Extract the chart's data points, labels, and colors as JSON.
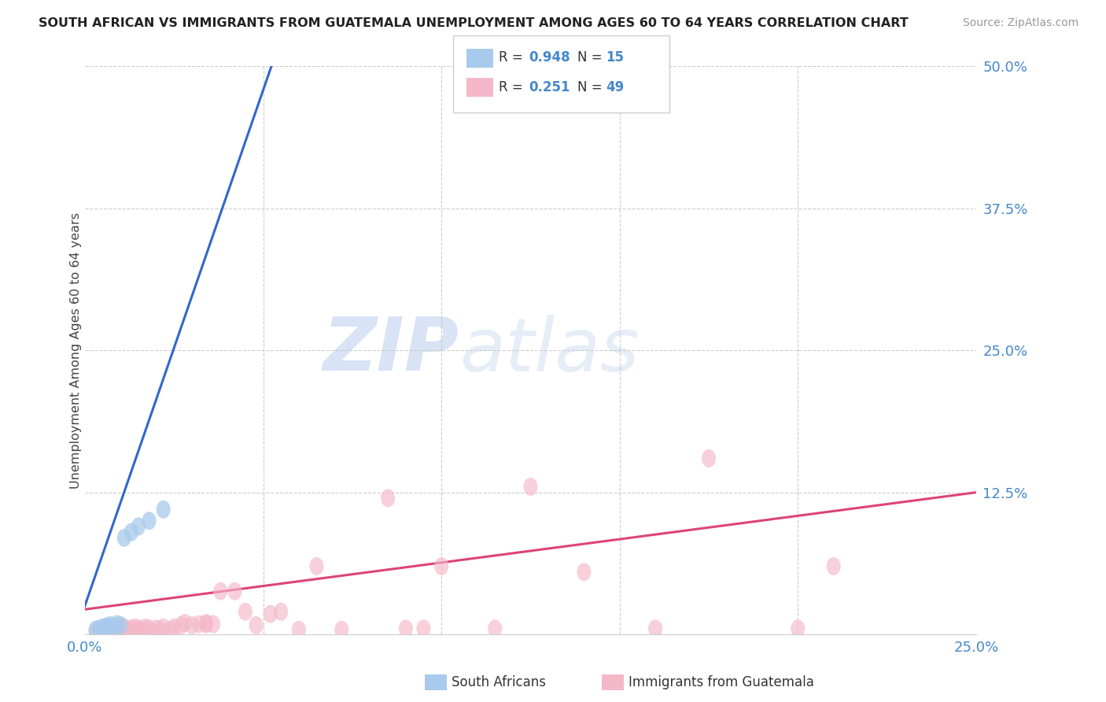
{
  "title": "SOUTH AFRICAN VS IMMIGRANTS FROM GUATEMALA UNEMPLOYMENT AMONG AGES 60 TO 64 YEARS CORRELATION CHART",
  "source": "Source: ZipAtlas.com",
  "ylabel": "Unemployment Among Ages 60 to 64 years",
  "xlim": [
    0.0,
    0.25
  ],
  "ylim": [
    0.0,
    0.5
  ],
  "xtick_positions": [
    0.0,
    0.05,
    0.1,
    0.15,
    0.2,
    0.25
  ],
  "xticklabels": [
    "0.0%",
    "",
    "",
    "",
    "",
    "25.0%"
  ],
  "ytick_positions": [
    0.0,
    0.125,
    0.25,
    0.375,
    0.5
  ],
  "yticklabels": [
    "",
    "12.5%",
    "25.0%",
    "37.5%",
    "50.0%"
  ],
  "legend_label1": "South Africans",
  "legend_label2": "Immigrants from Guatemala",
  "color_blue": "#a8caec",
  "color_pink": "#f4b8c8",
  "line_color_blue": "#3366cc",
  "line_color_pink": "#dd4477",
  "watermark_zip": "ZIP",
  "watermark_atlas": "atlas",
  "sa_x": [
    0.003,
    0.004,
    0.005,
    0.005,
    0.006,
    0.007,
    0.007,
    0.008,
    0.009,
    0.01,
    0.011,
    0.013,
    0.015,
    0.018,
    0.022
  ],
  "sa_y": [
    0.004,
    0.005,
    0.005,
    0.006,
    0.007,
    0.006,
    0.008,
    0.007,
    0.009,
    0.008,
    0.085,
    0.09,
    0.095,
    0.1,
    0.11
  ],
  "gt_x": [
    0.003,
    0.004,
    0.005,
    0.006,
    0.007,
    0.008,
    0.009,
    0.01,
    0.01,
    0.011,
    0.012,
    0.013,
    0.014,
    0.015,
    0.016,
    0.017,
    0.018,
    0.02,
    0.021,
    0.022,
    0.024,
    0.025,
    0.027,
    0.028,
    0.03,
    0.032,
    0.034,
    0.034,
    0.036,
    0.038,
    0.042,
    0.045,
    0.048,
    0.052,
    0.055,
    0.06,
    0.065,
    0.072,
    0.085,
    0.09,
    0.095,
    0.1,
    0.115,
    0.125,
    0.14,
    0.16,
    0.175,
    0.2,
    0.21
  ],
  "gt_y": [
    0.003,
    0.004,
    0.003,
    0.005,
    0.003,
    0.005,
    0.004,
    0.005,
    0.003,
    0.006,
    0.004,
    0.005,
    0.006,
    0.005,
    0.004,
    0.006,
    0.005,
    0.005,
    0.004,
    0.006,
    0.004,
    0.006,
    0.008,
    0.01,
    0.008,
    0.009,
    0.009,
    0.01,
    0.009,
    0.038,
    0.038,
    0.02,
    0.008,
    0.018,
    0.02,
    0.004,
    0.06,
    0.004,
    0.12,
    0.005,
    0.005,
    0.06,
    0.005,
    0.13,
    0.055,
    0.005,
    0.155,
    0.005,
    0.06
  ],
  "blue_line_x": [
    -0.005,
    0.06
  ],
  "blue_line_y": [
    -0.02,
    0.57
  ],
  "pink_line_x": [
    0.0,
    0.25
  ],
  "pink_line_y": [
    0.022,
    0.125
  ]
}
